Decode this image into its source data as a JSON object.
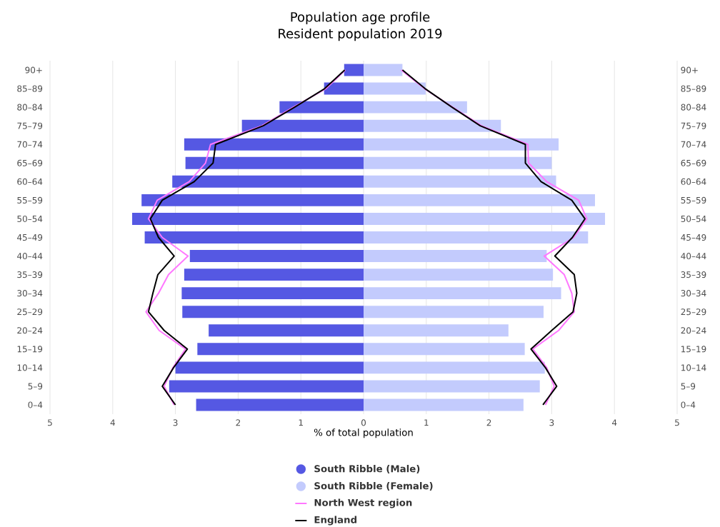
{
  "chart_data": {
    "type": "bar",
    "orientation": "horizontal",
    "title": "Population age profile",
    "subtitle": "Resident population 2019",
    "xlabel": "% of total population",
    "categories": [
      "90+",
      "85–89",
      "80–84",
      "75–79",
      "70–74",
      "65–69",
      "60–64",
      "55–59",
      "50–54",
      "45–49",
      "40–44",
      "35–39",
      "30–34",
      "25–29",
      "20–24",
      "15–19",
      "10–14",
      "5–9",
      "0–4"
    ],
    "series": [
      {
        "name": "South Ribble (Male)",
        "color": "#5558e3",
        "values": [
          -0.31,
          -0.63,
          -1.34,
          -1.94,
          -2.86,
          -2.84,
          -3.05,
          -3.54,
          -3.69,
          -3.49,
          -2.77,
          -2.86,
          -2.9,
          -2.89,
          -2.47,
          -2.65,
          -3.0,
          -3.1,
          -2.67
        ]
      },
      {
        "name": "South Ribble (Female)",
        "color": "#c3cbfd",
        "values": [
          0.62,
          0.99,
          1.65,
          2.19,
          3.11,
          3.0,
          3.07,
          3.69,
          3.85,
          3.58,
          2.92,
          3.02,
          3.15,
          2.87,
          2.31,
          2.57,
          2.89,
          2.81,
          2.55
        ]
      },
      {
        "name": "North West region",
        "type": "line",
        "color": "#ff77ff",
        "values": [
          -0.29,
          -0.6,
          -1.12,
          -1.62,
          -2.44,
          -2.52,
          -2.78,
          -3.29,
          -3.43,
          -3.21,
          -2.8,
          -3.11,
          -3.27,
          -3.47,
          -3.26,
          -2.84,
          -3.04,
          -3.18,
          -3.02
        ]
      },
      {
        "name": "England",
        "type": "line",
        "color": "#000000",
        "values": [
          -0.3,
          -0.62,
          -1.1,
          -1.6,
          -2.36,
          -2.4,
          -2.7,
          -3.21,
          -3.4,
          -3.27,
          -3.02,
          -3.28,
          -3.36,
          -3.43,
          -3.18,
          -2.81,
          -3.03,
          -3.21,
          -3.0
        ]
      },
      {
        "type": "line",
        "color": "#ff77ff",
        "values": [
          0.6,
          0.97,
          1.42,
          1.88,
          2.62,
          2.63,
          2.92,
          3.43,
          3.56,
          3.35,
          2.88,
          3.2,
          3.32,
          3.36,
          3.11,
          2.7,
          2.92,
          3.04,
          2.9
        ]
      },
      {
        "type": "line",
        "color": "#000000",
        "values": [
          0.62,
          0.98,
          1.41,
          1.86,
          2.58,
          2.58,
          2.83,
          3.32,
          3.53,
          3.33,
          3.05,
          3.36,
          3.4,
          3.34,
          3.0,
          2.67,
          2.9,
          3.08,
          2.86
        ]
      }
    ],
    "xlim": [
      -5,
      5
    ],
    "xticks": [
      {
        "value": -5,
        "label": "5"
      },
      {
        "value": -4,
        "label": "4"
      },
      {
        "value": -3,
        "label": "3"
      },
      {
        "value": -2,
        "label": "2"
      },
      {
        "value": -1,
        "label": "1"
      },
      0,
      1,
      2,
      3,
      4,
      5
    ],
    "grid": "x",
    "legend": "bottom",
    "stacked": true,
    "marker": "none",
    "line_style": "solid"
  }
}
